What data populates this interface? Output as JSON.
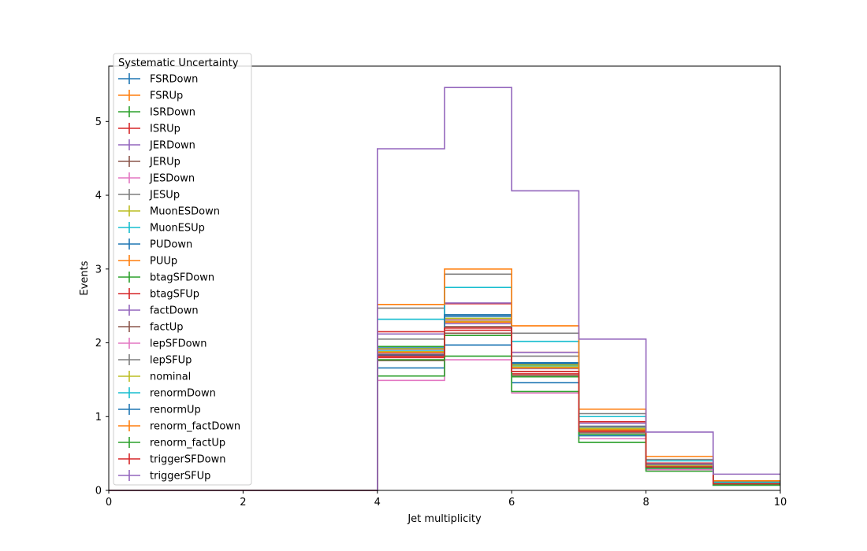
{
  "chart_data": {
    "type": "line",
    "title": "",
    "xlabel": "Jet multiplicity",
    "ylabel": "Events",
    "xlim": [
      0,
      10
    ],
    "ylim": [
      0,
      5.75
    ],
    "xticks": [
      "0",
      "2",
      "4",
      "6",
      "8",
      "10"
    ],
    "xtick_values": [
      0,
      2,
      4,
      6,
      8,
      10
    ],
    "yticks": [
      "0",
      "1",
      "2",
      "3",
      "4",
      "5"
    ],
    "ytick_values": [
      0,
      1,
      2,
      3,
      4,
      5
    ],
    "bin_edges": [
      0,
      1,
      2,
      3,
      4,
      5,
      6,
      7,
      8,
      9,
      10
    ],
    "grid": false,
    "legend": {
      "title": "Systematic Uncertainty",
      "placement": "upper-left"
    },
    "series": [
      {
        "name": "FSRDown",
        "color": "#1f77b4",
        "values": [
          0,
          0,
          0,
          0,
          1.66,
          1.97,
          1.46,
          0.76,
          0.3,
          0.09
        ]
      },
      {
        "name": "FSRUp",
        "color": "#ff7f0e",
        "values": [
          0,
          0,
          0,
          0,
          1.91,
          2.32,
          1.69,
          0.86,
          0.34,
          0.1
        ]
      },
      {
        "name": "ISRDown",
        "color": "#2ca02c",
        "values": [
          0,
          0,
          0,
          0,
          1.95,
          2.33,
          1.71,
          0.84,
          0.33,
          0.09
        ]
      },
      {
        "name": "ISRUp",
        "color": "#d62728",
        "values": [
          0,
          0,
          0,
          0,
          1.8,
          2.17,
          1.58,
          0.8,
          0.32,
          0.09
        ]
      },
      {
        "name": "JERDown",
        "color": "#9467bd",
        "values": [
          0,
          0,
          0,
          0,
          1.86,
          2.26,
          1.65,
          0.82,
          0.33,
          0.09
        ]
      },
      {
        "name": "JERUp",
        "color": "#8c564b",
        "values": [
          0,
          0,
          0,
          0,
          1.84,
          2.22,
          1.61,
          0.81,
          0.32,
          0.09
        ]
      },
      {
        "name": "JESDown",
        "color": "#e377c2",
        "values": [
          0,
          0,
          0,
          0,
          1.49,
          1.77,
          1.32,
          0.7,
          0.28,
          0.08
        ]
      },
      {
        "name": "JESUp",
        "color": "#7f7f7f",
        "values": [
          0,
          0,
          0,
          0,
          2.47,
          2.93,
          2.13,
          1.04,
          0.42,
          0.12
        ]
      },
      {
        "name": "MuonESDown",
        "color": "#bcbd22",
        "values": [
          0,
          0,
          0,
          0,
          1.88,
          2.29,
          1.67,
          0.83,
          0.33,
          0.09
        ]
      },
      {
        "name": "MuonESUp",
        "color": "#17becf",
        "values": [
          0,
          0,
          0,
          0,
          1.9,
          2.31,
          1.69,
          0.84,
          0.33,
          0.09
        ]
      },
      {
        "name": "PUDown",
        "color": "#1f77b4",
        "values": [
          0,
          0,
          0,
          0,
          1.93,
          2.36,
          1.72,
          0.86,
          0.34,
          0.1
        ]
      },
      {
        "name": "PUUp",
        "color": "#ff7f0e",
        "values": [
          0,
          0,
          0,
          0,
          1.87,
          2.28,
          1.66,
          0.82,
          0.33,
          0.09
        ]
      },
      {
        "name": "btagSFDown",
        "color": "#2ca02c",
        "values": [
          0,
          0,
          0,
          0,
          1.55,
          1.82,
          1.34,
          0.65,
          0.26,
          0.07
        ]
      },
      {
        "name": "btagSFUp",
        "color": "#d62728",
        "values": [
          0,
          0,
          0,
          0,
          2.15,
          2.53,
          1.87,
          0.93,
          0.37,
          0.1
        ]
      },
      {
        "name": "factDown",
        "color": "#9467bd",
        "values": [
          0,
          0,
          0,
          0,
          2.12,
          2.54,
          1.87,
          0.91,
          0.36,
          0.1
        ]
      },
      {
        "name": "factUp",
        "color": "#8c564b",
        "values": [
          0,
          0,
          0,
          0,
          1.76,
          2.13,
          1.56,
          0.78,
          0.31,
          0.09
        ]
      },
      {
        "name": "lepSFDown",
        "color": "#e377c2",
        "values": [
          0,
          0,
          0,
          0,
          1.91,
          2.31,
          1.7,
          0.84,
          0.33,
          0.09
        ]
      },
      {
        "name": "lepSFUp",
        "color": "#7f7f7f",
        "values": [
          0,
          0,
          0,
          0,
          2.05,
          2.38,
          1.82,
          0.87,
          0.35,
          0.1
        ]
      },
      {
        "name": "nominal",
        "color": "#bcbd22",
        "values": [
          0,
          0,
          0,
          0,
          1.92,
          2.33,
          1.7,
          0.84,
          0.33,
          0.09
        ]
      },
      {
        "name": "renormDown",
        "color": "#17becf",
        "values": [
          0,
          0,
          0,
          0,
          2.32,
          2.75,
          2.02,
          1.0,
          0.4,
          0.11
        ]
      },
      {
        "name": "renormUp",
        "color": "#1f77b4",
        "values": [
          0,
          0,
          0,
          0,
          1.83,
          2.38,
          1.73,
          0.74,
          0.3,
          0.08
        ]
      },
      {
        "name": "renorm_factDown",
        "color": "#ff7f0e",
        "values": [
          0,
          0,
          0,
          0,
          2.52,
          3.0,
          2.23,
          1.1,
          0.46,
          0.13
        ]
      },
      {
        "name": "renorm_factUp",
        "color": "#2ca02c",
        "values": [
          0,
          0,
          0,
          0,
          1.77,
          2.1,
          1.54,
          0.76,
          0.3,
          0.08
        ]
      },
      {
        "name": "triggerSFDown",
        "color": "#d62728",
        "values": [
          0,
          0,
          0,
          0,
          1.82,
          2.2,
          1.61,
          0.8,
          0.32,
          0.09
        ]
      },
      {
        "name": "triggerSFUp",
        "color": "#9467bd",
        "values": [
          0,
          0,
          0,
          0,
          4.63,
          5.46,
          4.06,
          2.05,
          0.79,
          0.22
        ]
      }
    ]
  }
}
